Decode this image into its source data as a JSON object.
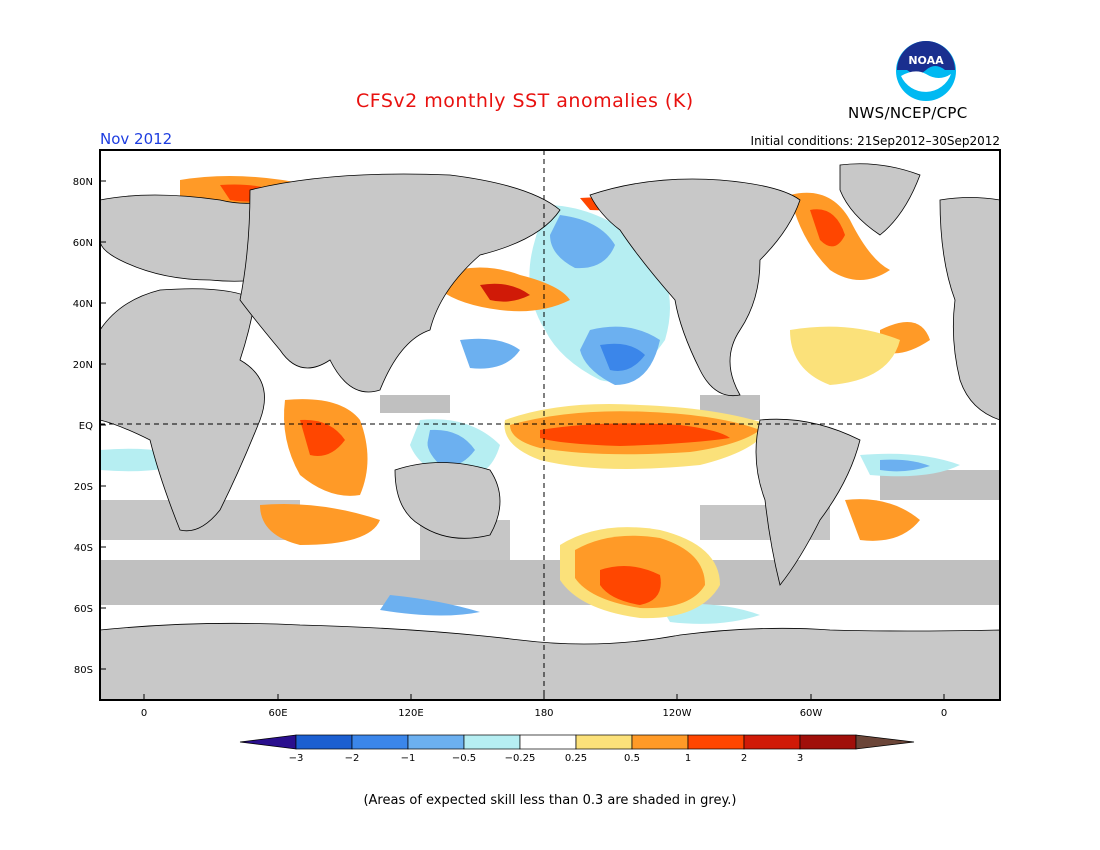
{
  "header": {
    "title": "CFSv2 monthly SST anomalies (K)",
    "month": "Nov 2012",
    "initial_conditions": "Initial conditions: 21Sep2012–30Sep2012",
    "agency": "NWS/NCEP/CPC",
    "logo_icon": "noaa-logo-icon",
    "logo_text": "NOAA"
  },
  "map": {
    "lat_labels": [
      "80N",
      "60N",
      "40N",
      "20N",
      "EQ",
      "20S",
      "40S",
      "60S",
      "80S"
    ],
    "lon_labels": [
      "0",
      "60E",
      "120E",
      "180",
      "120W",
      "60W",
      "0"
    ],
    "land_color": "#c8c8c8",
    "grey_shading_color": "#c0c0c0"
  },
  "colorbar": {
    "labels": [
      "-3",
      "-2",
      "-1",
      "-0.5",
      "-0.25",
      "0.25",
      "0.5",
      "1",
      "2",
      "3"
    ],
    "colors": [
      "#2a0f8e",
      "#1c5fd1",
      "#3b86ea",
      "#6cb0f0",
      "#b6eef2",
      "#ffffff",
      "#fbe17a",
      "#ff9a27",
      "#ff4600",
      "#d01a07",
      "#a00f0a",
      "#6b4538"
    ]
  },
  "footnote": "(Areas of expected skill less than 0.3 are shaded in grey.)"
}
